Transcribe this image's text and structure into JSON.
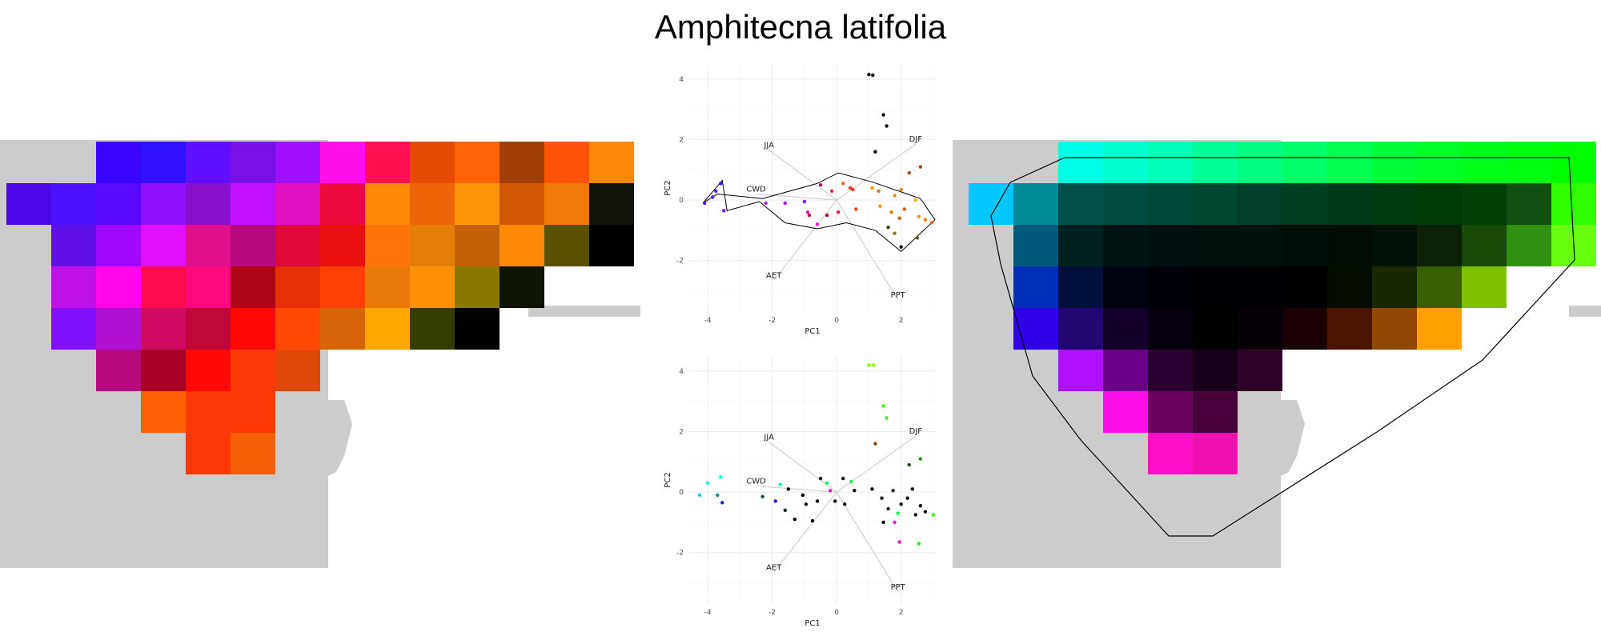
{
  "title": "Amphitecna latifolia",
  "colors": {
    "land": "#cccccc",
    "grid": "#ebebeb",
    "vector": "#c8c8c8"
  },
  "maps": {
    "left": {
      "rows": [
        [
          "",
          "",
          "#3a05ff",
          "#3010ff",
          "#6010ff",
          "#7a10e8",
          "#a010ff",
          "#ff10e8",
          "#ff1050",
          "#e84a08",
          "#ff6408",
          "#a04008",
          "#ff5408",
          "#ff8808"
        ],
        [
          "#4a08e8",
          "#4a10ff",
          "#5a08ff",
          "#9010ff",
          "#8a10d0",
          "#c010ff",
          "#e010c0",
          "#ee0a3a",
          "#ff8a08",
          "#ef6408",
          "#ff9408",
          "#d05808",
          "#ee7a08",
          "#101408"
        ],
        [
          "",
          "#6010e8",
          "#a008ff",
          "#e010ff",
          "#e0108a",
          "#b80880",
          "#e00a38",
          "#ea1010",
          "#ff7408",
          "#e47c08",
          "#c46008",
          "#ff8a08",
          "#5a5000",
          "#000000"
        ],
        [
          "",
          "#c010e8",
          "#ff08e8",
          "#ff0a50",
          "#ff0a7c",
          "#b00418",
          "#e83008",
          "#ff4008",
          "#e87808",
          "#ff9008",
          "#8a7800",
          "#0e1404",
          "",
          ""
        ],
        [
          "",
          "#8010ff",
          "#b010d0",
          "#d00a64",
          "#c00838",
          "#ff0808",
          "#ff4a04",
          "#d86408",
          "#ffa800",
          "#343c00",
          "#000000",
          "",
          "",
          ""
        ],
        [
          "",
          "",
          "#b80880",
          "#a80024",
          "#ff0808",
          "#ff3a08",
          "#e04808",
          "",
          "",
          "",
          "",
          "",
          "",
          ""
        ],
        [
          "",
          "",
          "",
          "#ff6008",
          "#ff3a08",
          "#ff3808",
          "",
          "",
          "",
          "",
          "",
          "",
          "",
          ""
        ],
        [
          "",
          "",
          "",
          "",
          "#ff3808",
          "#f86008",
          "",
          "",
          "",
          "",
          "",
          "",
          "",
          ""
        ]
      ]
    },
    "right": {
      "rows": [
        [
          "",
          "",
          "#00ffe8",
          "#00ffd0",
          "#00ffb8",
          "#00ff98",
          "#00ff80",
          "#00ff68",
          "#00ff50",
          "#00ff38",
          "#00ff28",
          "#00ff18",
          "#00ff10",
          "#00ff00"
        ],
        [
          "#00c8ff",
          "#008a98",
          "#00504a",
          "#004a40",
          "#004838",
          "#004830",
          "#004028",
          "#004020",
          "#003a18",
          "#003a10",
          "#003a08",
          "#004008",
          "#105010",
          "#30ff00"
        ],
        [
          "",
          "#00587a",
          "#002020",
          "#001414",
          "#001210",
          "#00100c",
          "#00100a",
          "#000e08",
          "#000c04",
          "#001208",
          "#0c2008",
          "#1a4a08",
          "#309010",
          "#68ff10"
        ],
        [
          "",
          "#0030b8",
          "#00103a",
          "#000410",
          "#000008",
          "#000004",
          "#000004",
          "#000002",
          "#040c00",
          "#1a2800",
          "#386000",
          "#80c000",
          "",
          ""
        ],
        [
          "",
          "#3000e8",
          "#200870",
          "#12002a",
          "#060010",
          "#000000",
          "#080008",
          "#1a0004",
          "#4a1400",
          "#904804",
          "#ffa000",
          "",
          "",
          ""
        ],
        [
          "",
          "",
          "#b010ff",
          "#6a008a",
          "#2a0030",
          "#180018",
          "#300028",
          "",
          "",
          "",
          "",
          "",
          "",
          ""
        ],
        [
          "",
          "",
          "",
          "#ff10e8",
          "#6a0060",
          "#48003a",
          "",
          "",
          "",
          "",
          "",
          "",
          "",
          ""
        ],
        [
          "",
          "",
          "",
          "",
          "#ff10c8",
          "#f010b0",
          "",
          "",
          "",
          "",
          "",
          "",
          "",
          ""
        ]
      ]
    }
  },
  "chart_data": [
    {
      "type": "scatter",
      "panel": "top",
      "xlabel": "PC1",
      "ylabel": "PC2",
      "xlim": [
        -4.6,
        3.1
      ],
      "ylim": [
        -3.7,
        4.5
      ],
      "xticks": [
        -4,
        -2,
        0,
        2
      ],
      "yticks": [
        -2,
        0,
        2,
        4
      ],
      "grid": true,
      "vectors": [
        {
          "label": "JJA",
          "x": -2.1,
          "y": 1.65
        },
        {
          "label": "DJF",
          "x": 2.45,
          "y": 1.85
        },
        {
          "label": "CWD",
          "x": -2.5,
          "y": 0.2
        },
        {
          "label": "AET",
          "x": -1.95,
          "y": -2.65
        },
        {
          "label": "PPT",
          "x": 1.9,
          "y": -3.3
        }
      ],
      "points": [
        {
          "x": 1.0,
          "y": 4.15,
          "c": "#000000"
        },
        {
          "x": 1.12,
          "y": 4.13,
          "c": "#000000"
        },
        {
          "x": 1.45,
          "y": 2.82,
          "c": "#000000"
        },
        {
          "x": 1.55,
          "y": 2.45,
          "c": "#000000"
        },
        {
          "x": 1.2,
          "y": 1.6,
          "c": "#000000"
        },
        {
          "x": 2.6,
          "y": 1.1,
          "c": "#b04010"
        },
        {
          "x": 2.25,
          "y": 0.9,
          "c": "#c04010"
        },
        {
          "x": -0.5,
          "y": 0.5,
          "c": "#b01060"
        },
        {
          "x": 0.2,
          "y": 0.55,
          "c": "#ff6010"
        },
        {
          "x": 0.42,
          "y": 0.4,
          "c": "#e04010"
        },
        {
          "x": 0.5,
          "y": 0.35,
          "c": "#ff3010"
        },
        {
          "x": -0.15,
          "y": 0.3,
          "c": "#ff2020"
        },
        {
          "x": 1.1,
          "y": 0.4,
          "c": "#ff9000"
        },
        {
          "x": 1.3,
          "y": 0.3,
          "c": "#e07000"
        },
        {
          "x": 2.0,
          "y": 0.35,
          "c": "#ff8000"
        },
        {
          "x": -3.6,
          "y": 0.55,
          "c": "#3010ff"
        },
        {
          "x": -3.75,
          "y": 0.3,
          "c": "#4a10ff"
        },
        {
          "x": -4.1,
          "y": -0.1,
          "c": "#5010ff"
        },
        {
          "x": -3.5,
          "y": -0.35,
          "c": "#8010ff"
        },
        {
          "x": -3.85,
          "y": 0.1,
          "c": "#6010e8"
        },
        {
          "x": -2.2,
          "y": -0.1,
          "c": "#c010ff"
        },
        {
          "x": -1.6,
          "y": -0.1,
          "c": "#a010ff"
        },
        {
          "x": -1.0,
          "y": -0.05,
          "c": "#9010ff"
        },
        {
          "x": -0.9,
          "y": -0.4,
          "c": "#e010c0"
        },
        {
          "x": -0.6,
          "y": -0.8,
          "c": "#ff10e8"
        },
        {
          "x": -0.3,
          "y": -0.5,
          "c": "#b00418"
        },
        {
          "x": 0.05,
          "y": -0.4,
          "c": "#ff0a50"
        },
        {
          "x": -0.85,
          "y": -0.5,
          "c": "#c00838"
        },
        {
          "x": 0.6,
          "y": -0.3,
          "c": "#ff4008"
        },
        {
          "x": 1.35,
          "y": -0.2,
          "c": "#ff9008"
        },
        {
          "x": 1.7,
          "y": -0.4,
          "c": "#e87808"
        },
        {
          "x": 1.95,
          "y": -0.6,
          "c": "#c46008"
        },
        {
          "x": 2.1,
          "y": -0.3,
          "c": "#d05808"
        },
        {
          "x": 2.55,
          "y": -0.55,
          "c": "#ff8808"
        },
        {
          "x": 2.75,
          "y": -0.65,
          "c": "#ee7a08"
        },
        {
          "x": 2.95,
          "y": -0.75,
          "c": "#ff6408"
        },
        {
          "x": 2.5,
          "y": -1.25,
          "c": "#5a5000"
        },
        {
          "x": 2.0,
          "y": -1.55,
          "c": "#000000"
        },
        {
          "x": 1.8,
          "y": -1.1,
          "c": "#8a7800"
        },
        {
          "x": 1.6,
          "y": -0.9,
          "c": "#343c00"
        },
        {
          "x": 2.45,
          "y": 0.0,
          "c": "#ffa800"
        },
        {
          "x": 1.8,
          "y": 0.15,
          "c": "#ff8a08"
        }
      ],
      "hull": [
        [
          -4.15,
          -0.1
        ],
        [
          -3.55,
          0.65
        ],
        [
          -3.4,
          -0.35
        ],
        [
          -2.4,
          -0.05
        ],
        [
          -1.6,
          -0.75
        ],
        [
          -0.6,
          -0.95
        ],
        [
          0.3,
          -0.75
        ],
        [
          1.2,
          -1.0
        ],
        [
          2.0,
          -1.7
        ],
        [
          3.05,
          -0.65
        ],
        [
          2.6,
          0.05
        ],
        [
          1.1,
          0.6
        ],
        [
          0.05,
          0.9
        ],
        [
          -0.6,
          0.55
        ],
        [
          -2.3,
          0.05
        ],
        [
          -3.7,
          0.2
        ]
      ]
    },
    {
      "type": "scatter",
      "panel": "bottom",
      "xlabel": "PC1",
      "ylabel": "PC2",
      "xlim": [
        -4.6,
        3.1
      ],
      "ylim": [
        -3.7,
        4.5
      ],
      "xticks": [
        -4,
        -2,
        0,
        2
      ],
      "yticks": [
        -2,
        0,
        2,
        4
      ],
      "grid": true,
      "vectors": [
        {
          "label": "JJA",
          "x": -2.1,
          "y": 1.65
        },
        {
          "label": "DJF",
          "x": 2.45,
          "y": 1.85
        },
        {
          "label": "CWD",
          "x": -2.5,
          "y": 0.2
        },
        {
          "label": "AET",
          "x": -1.95,
          "y": -2.65
        },
        {
          "label": "PPT",
          "x": 1.9,
          "y": -3.3
        }
      ],
      "points": [
        {
          "x": 1.0,
          "y": 4.2,
          "c": "#80ff00"
        },
        {
          "x": 1.15,
          "y": 4.2,
          "c": "#80ff00"
        },
        {
          "x": 1.45,
          "y": 2.85,
          "c": "#30ff00"
        },
        {
          "x": 1.55,
          "y": 2.45,
          "c": "#30ff00"
        },
        {
          "x": 1.2,
          "y": 1.6,
          "c": "#904804"
        },
        {
          "x": 2.6,
          "y": 1.1,
          "c": "#309010"
        },
        {
          "x": 2.25,
          "y": 0.9,
          "c": "#1a4a08"
        },
        {
          "x": -3.6,
          "y": 0.5,
          "c": "#00ffe8"
        },
        {
          "x": -4.0,
          "y": 0.3,
          "c": "#00ffd0"
        },
        {
          "x": -4.25,
          "y": -0.1,
          "c": "#00c8ff"
        },
        {
          "x": -3.7,
          "y": -0.1,
          "c": "#008a98"
        },
        {
          "x": -3.55,
          "y": -0.35,
          "c": "#0030b8"
        },
        {
          "x": -1.75,
          "y": 0.25,
          "c": "#00ffb8"
        },
        {
          "x": -2.3,
          "y": -0.15,
          "c": "#00504a"
        },
        {
          "x": -1.5,
          "y": 0.1,
          "c": "#000000"
        },
        {
          "x": -1.9,
          "y": -0.3,
          "c": "#3000e8"
        },
        {
          "x": -1.6,
          "y": -0.6,
          "c": "#002020"
        },
        {
          "x": -1.3,
          "y": -0.9,
          "c": "#000000"
        },
        {
          "x": -0.95,
          "y": -0.4,
          "c": "#001414"
        },
        {
          "x": -0.75,
          "y": -0.95,
          "c": "#000000"
        },
        {
          "x": -0.5,
          "y": 0.45,
          "c": "#000000"
        },
        {
          "x": -0.3,
          "y": 0.3,
          "c": "#00ff68"
        },
        {
          "x": 0.2,
          "y": 0.45,
          "c": "#000000"
        },
        {
          "x": 0.45,
          "y": 0.35,
          "c": "#00ff50"
        },
        {
          "x": -0.2,
          "y": 0.05,
          "c": "#ff10e8"
        },
        {
          "x": 0.55,
          "y": 0.05,
          "c": "#000000"
        },
        {
          "x": -0.05,
          "y": -0.3,
          "c": "#000000"
        },
        {
          "x": 0.25,
          "y": -0.4,
          "c": "#000000"
        },
        {
          "x": -1.05,
          "y": -0.1,
          "c": "#000000"
        },
        {
          "x": 1.1,
          "y": 0.1,
          "c": "#000000"
        },
        {
          "x": 1.4,
          "y": -0.2,
          "c": "#000000"
        },
        {
          "x": 1.75,
          "y": 0.05,
          "c": "#000000"
        },
        {
          "x": 2.0,
          "y": -0.4,
          "c": "#000000"
        },
        {
          "x": 2.6,
          "y": -0.45,
          "c": "#000000"
        },
        {
          "x": 2.75,
          "y": -0.65,
          "c": "#000000"
        },
        {
          "x": 3.0,
          "y": -0.75,
          "c": "#30ff00"
        },
        {
          "x": 2.45,
          "y": -0.75,
          "c": "#000000"
        },
        {
          "x": 1.45,
          "y": -1.0,
          "c": "#000000"
        },
        {
          "x": 1.8,
          "y": -1.0,
          "c": "#ff10e8"
        },
        {
          "x": 1.9,
          "y": -0.7,
          "c": "#00ff38"
        },
        {
          "x": 2.55,
          "y": -1.7,
          "c": "#00ff00"
        },
        {
          "x": 1.95,
          "y": -1.65,
          "c": "#f010b0"
        },
        {
          "x": 2.2,
          "y": -0.2,
          "c": "#000000"
        },
        {
          "x": 1.6,
          "y": -0.55,
          "c": "#1a0004"
        },
        {
          "x": 2.35,
          "y": 0.1,
          "c": "#0c2008"
        },
        {
          "x": -0.6,
          "y": -0.3,
          "c": "#000000"
        }
      ]
    }
  ]
}
